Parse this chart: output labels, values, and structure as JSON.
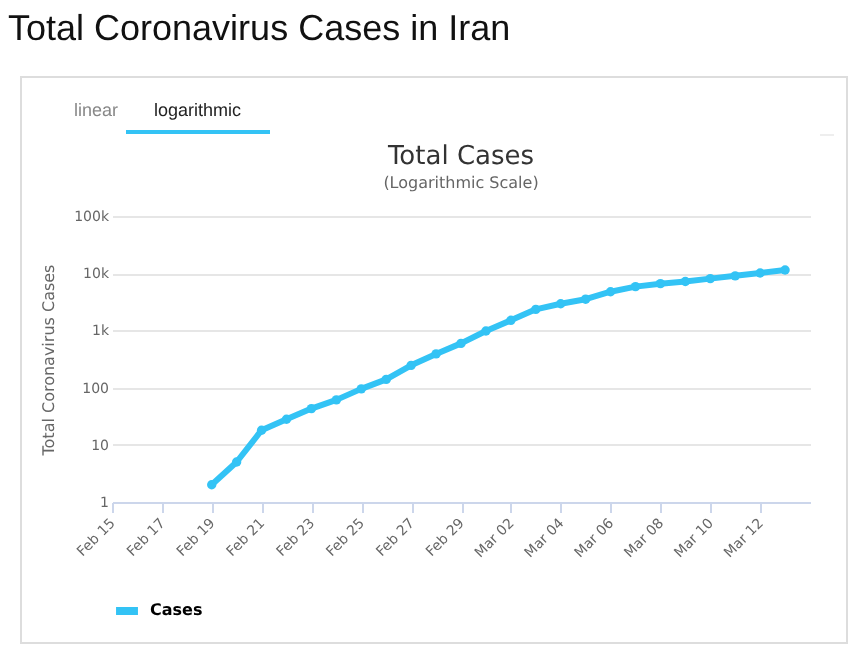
{
  "chart_data": {
    "type": "line",
    "title": "Total Cases",
    "subtitle": "(Logarithmic Scale)",
    "ylabel": "Total Coronavirus Cases",
    "annotations": [
      "Total Coronavirus Cases in Iran",
      "linear",
      "logarithmic"
    ],
    "x": [
      "--02-19",
      "--02-20",
      "--02-21",
      "--02-22",
      "--02-23",
      "--02-24",
      "--02-25",
      "--02-26",
      "--02-27",
      "--02-28",
      "--02-29",
      "--03-01",
      "--03-02",
      "--03-03",
      "--03-04",
      "--03-05",
      "--03-06",
      "--03-07",
      "--03-08",
      "--03-09",
      "--03-10",
      "--03-11",
      "--03-12",
      "--03-13"
    ],
    "series": [
      {
        "name": "Cases",
        "color": "#33c3f5",
        "values": [
          2,
          5,
          18,
          28,
          43,
          61,
          95,
          139,
          245,
          388,
          593,
          978,
          1501,
          2336,
          2922,
          3513,
          4747,
          5823,
          6566,
          7161,
          8042,
          9000,
          10075,
          11364
        ]
      }
    ],
    "xlim": [
      "--02-15",
      "--03-14"
    ],
    "xticks": [
      {
        "value": "--02-15",
        "label": "Feb 15"
      },
      {
        "value": "--02-17",
        "label": "Feb 17"
      },
      {
        "value": "--02-19",
        "label": "Feb 19"
      },
      {
        "value": "--02-21",
        "label": "Feb 21"
      },
      {
        "value": "--02-23",
        "label": "Feb 23"
      },
      {
        "value": "--02-25",
        "label": "Feb 25"
      },
      {
        "value": "--02-27",
        "label": "Feb 27"
      },
      {
        "value": "--02-29",
        "label": "Feb 29"
      },
      {
        "value": "--03-02",
        "label": "Mar 02"
      },
      {
        "value": "--03-04",
        "label": "Mar 04"
      },
      {
        "value": "--03-06",
        "label": "Mar 06"
      },
      {
        "value": "--03-08",
        "label": "Mar 08"
      },
      {
        "value": "--03-10",
        "label": "Mar 10"
      },
      {
        "value": "--03-12",
        "label": "Mar 12"
      }
    ],
    "ylim": [
      1,
      100000
    ],
    "yticks": [
      1,
      10,
      100,
      {
        "value": 1000,
        "label": "1k"
      },
      {
        "value": 10000,
        "label": "10k"
      },
      {
        "value": 100000,
        "label": "100k"
      }
    ],
    "log": true,
    "grid": "y",
    "marker": "circle",
    "line_style": "solid",
    "legend": "bottom"
  }
}
